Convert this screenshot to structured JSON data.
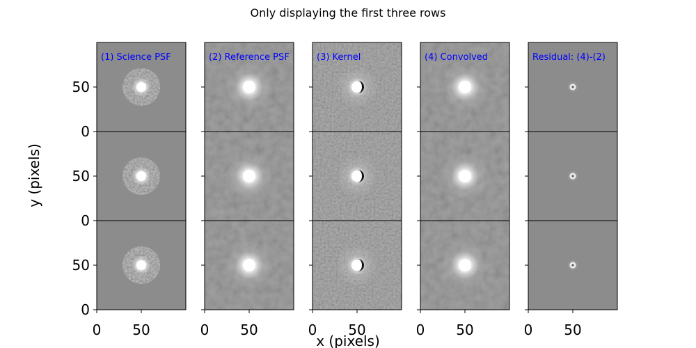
{
  "chart_data": {
    "type": "heatmap",
    "title": "Only displaying the first three rows",
    "xlabel": "x (pixels)",
    "ylabel": "y (pixels)",
    "xlim": [
      0,
      100
    ],
    "ylim": [
      0,
      100
    ],
    "rows": 3,
    "columns": [
      {
        "label": "(1) Science PSF",
        "kind": "science"
      },
      {
        "label": "(2) Reference PSF",
        "kind": "reference"
      },
      {
        "label": "(3) Kernel",
        "kind": "kernel"
      },
      {
        "label": "(4) Convolved",
        "kind": "convolved"
      },
      {
        "label": "Residual: (4)-(2)",
        "kind": "residual"
      }
    ],
    "xticks": [
      0,
      50
    ],
    "yticks": [
      0,
      50
    ],
    "source_center": [
      50,
      50
    ],
    "colormap": "gray",
    "panel_background": "#8c8c8c",
    "label_color": "#0000ff"
  }
}
